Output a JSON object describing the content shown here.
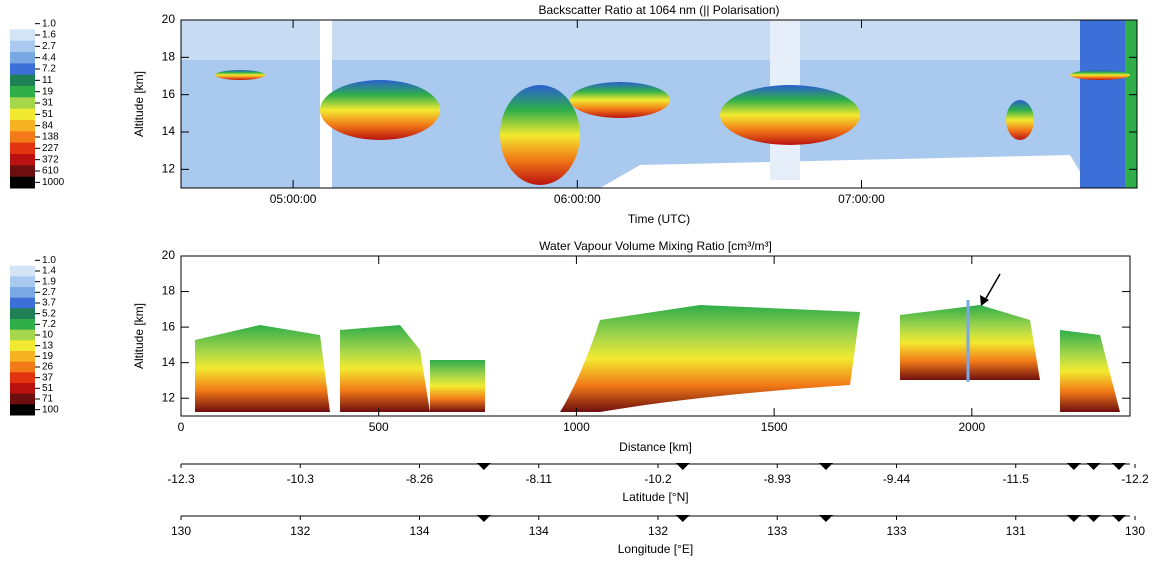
{
  "chart_data": [
    {
      "type": "heatmap",
      "title": "Backscatter Ratio at 1064 nm    (|| Polarisation)",
      "xlabel": "Time (UTC)",
      "ylabel": "Altitude [km]",
      "xlim": [
        16580,
        28690
      ],
      "xticks": [
        {
          "value": 18000,
          "label": "05:00:00"
        },
        {
          "value": 21600,
          "label": "06:00:00"
        },
        {
          "value": 25200,
          "label": "07:00:00"
        }
      ],
      "ylim": [
        11,
        20
      ],
      "yticks": [
        12,
        14,
        16,
        18,
        20
      ],
      "colorbar": {
        "ticks": [
          {
            "value": 1,
            "label": "1.0"
          },
          1.6,
          2.7,
          4.4,
          7.2,
          11,
          19,
          31,
          51,
          84,
          138,
          227,
          372,
          610,
          1000
        ],
        "colors": [
          "#ffffff",
          "#d4e4f7",
          "#a9c9ef",
          "#7aa8e4",
          "#3d6fd8",
          "#1f7f55",
          "#2fae4a",
          "#a6d64a",
          "#f2ea30",
          "#f6b222",
          "#f27a18",
          "#e23410",
          "#ba1210",
          "#6e0f0f",
          "#000000"
        ]
      }
    },
    {
      "type": "heatmap",
      "title": "Water Vapour Volume Mixing Ratio [cm³/m³]",
      "xlabel": "Distance [km]",
      "ylabel": "Altitude [km]",
      "xlim": [
        0,
        2400
      ],
      "xticks": [
        0,
        500,
        1000,
        1500,
        2000
      ],
      "ylim": [
        11,
        20
      ],
      "yticks": [
        12,
        14,
        16,
        18,
        20
      ],
      "markers": [
        766,
        1269,
        1631,
        2258,
        2308,
        2372
      ],
      "extra_axes": [
        {
          "label": "Latitude [°N]",
          "categories": [
            "-12.3",
            "-10.3",
            "-8.26",
            "-8.11",
            "-10.2",
            "-8.93",
            "-9.44",
            "-11.5",
            "-12.2"
          ]
        },
        {
          "label": "Longitude [°E]",
          "categories": [
            "130",
            "132",
            "134",
            "134",
            "132",
            "133",
            "133",
            "131",
            "130"
          ]
        }
      ],
      "colorbar": {
        "ticks": [
          {
            "value": 1,
            "label": "1.0"
          },
          1.4,
          1.9,
          2.7,
          3.7,
          5.2,
          7.2,
          10,
          13,
          19,
          26,
          37,
          51,
          71,
          100
        ],
        "colors": [
          "#ffffff",
          "#d4e4f7",
          "#a9c9ef",
          "#7aa8e4",
          "#3d6fd8",
          "#1f7f55",
          "#2fae4a",
          "#a6d64a",
          "#f2ea30",
          "#f6b222",
          "#f27a18",
          "#e23410",
          "#ba1210",
          "#6e0f0f",
          "#000000"
        ]
      }
    }
  ]
}
